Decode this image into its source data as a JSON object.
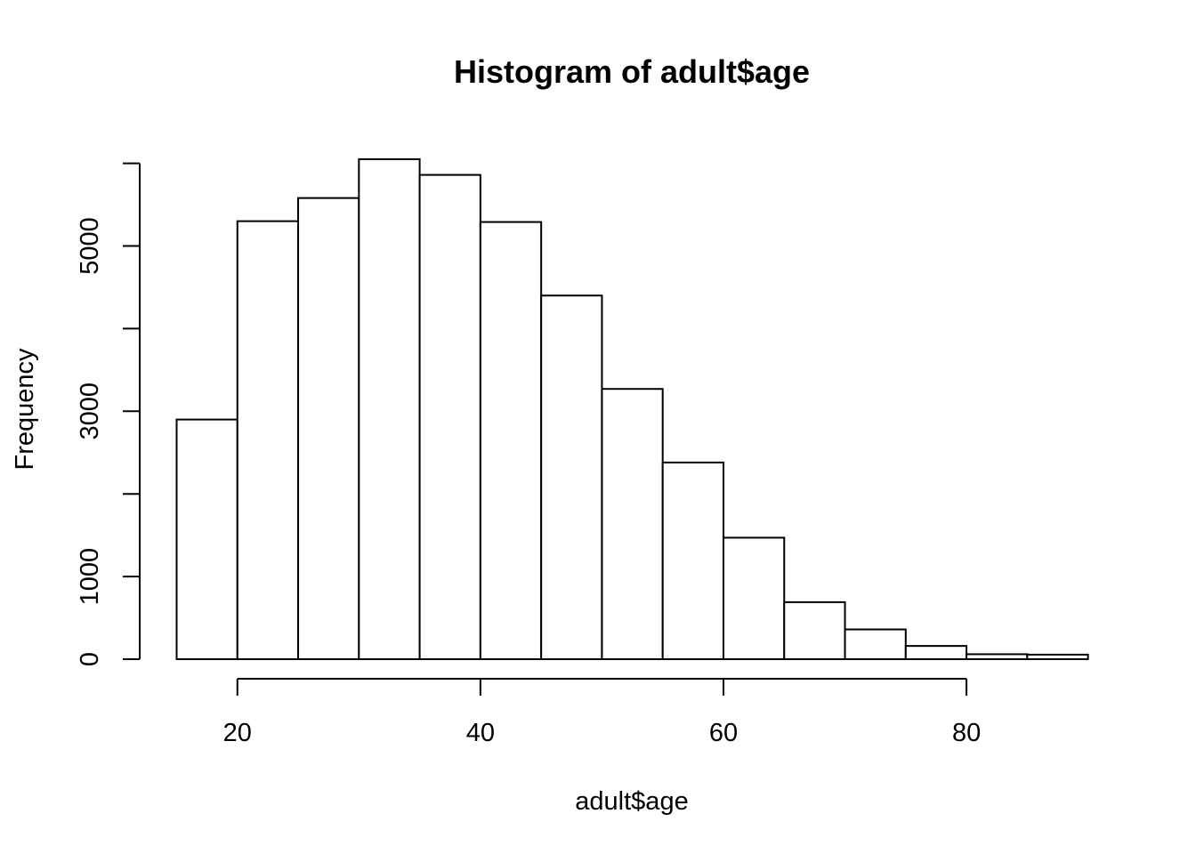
{
  "chart_data": {
    "type": "bar",
    "title": "Histogram of adult$age",
    "xlabel": "adult$age",
    "ylabel": "Frequency",
    "bin_edges": [
      15,
      20,
      25,
      30,
      35,
      40,
      45,
      50,
      55,
      60,
      65,
      70,
      75,
      80,
      85,
      90
    ],
    "values": [
      2900,
      5300,
      5580,
      6050,
      5860,
      5290,
      4400,
      3270,
      2380,
      1470,
      690,
      360,
      160,
      60,
      55
    ],
    "xlim": [
      15,
      90
    ],
    "ylim": [
      0,
      6050
    ],
    "x_ticks": [
      20,
      40,
      60,
      80
    ],
    "y_ticks": [
      0,
      1000,
      2000,
      3000,
      4000,
      5000,
      6000
    ],
    "y_tick_labels": [
      "0",
      "1000",
      "",
      "3000",
      "",
      "5000",
      ""
    ],
    "grid": false,
    "bar_fill": "#ffffff",
    "bar_stroke": "#000000"
  }
}
